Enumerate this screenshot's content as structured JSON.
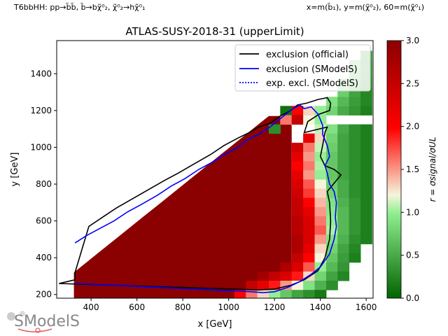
{
  "header": {
    "process": "T6bbHH: pp→b̃b̃, b̃→bχ̃⁰₂, χ̃⁰₂→hχ̃⁰₁",
    "axes_def": "x=m(b̃₁), y=m(χ̃⁰₂), 60=m(χ̃⁰₁)"
  },
  "logo_text": "SModelS",
  "chart_data": {
    "type": "heatmap",
    "title": "ATLAS-SUSY-2018-31 (upperLimit)",
    "xlabel": "x [GeV]",
    "ylabel": "y [GeV]",
    "xlim": [
      250,
      1630
    ],
    "ylim": [
      180,
      1580
    ],
    "xticks": [
      400,
      600,
      800,
      1000,
      1200,
      1400,
      1600
    ],
    "yticks": [
      200,
      400,
      600,
      800,
      1000,
      1200,
      1400
    ],
    "colorbar": {
      "label": "r = σsignal/σUL",
      "range": [
        0,
        3.0
      ],
      "ticks": [
        0.0,
        0.5,
        1.0,
        1.5,
        2.0,
        2.5,
        3.0
      ]
    },
    "legend": {
      "placement": "top-right",
      "entries": [
        {
          "label": "exclusion (official)",
          "color": "#000000",
          "style": "solid"
        },
        {
          "label": "exclusion (SModelS)",
          "color": "#0000ff",
          "style": "solid"
        },
        {
          "label": "exp. excl. (SModelS)",
          "color": "#0000ff",
          "style": "dotted"
        }
      ]
    },
    "grid": {
      "x0": 325,
      "dx": 50,
      "y0": 200,
      "dy": 50,
      "note_r": "cells with r values"
    },
    "cells": [
      [
        1250,
        1200,
        0.1
      ],
      [
        1300,
        1200,
        2.0
      ],
      [
        1250,
        1150,
        1.6
      ],
      [
        1200,
        1100,
        0.3
      ],
      [
        1300,
        1150,
        2.5
      ],
      [
        1350,
        1150,
        1.2
      ],
      [
        1400,
        1150,
        1.0
      ],
      [
        1350,
        1200,
        1.3
      ],
      [
        1400,
        1200,
        1.0
      ],
      [
        1450,
        1200,
        0.8
      ],
      [
        1500,
        1200,
        0.5
      ],
      [
        1550,
        1200,
        0.35
      ],
      [
        1600,
        1200,
        0.2
      ],
      [
        1450,
        1250,
        0.9
      ],
      [
        1500,
        1250,
        0.6
      ],
      [
        1550,
        1250,
        0.4
      ],
      [
        1600,
        1250,
        0.25
      ],
      [
        1500,
        1300,
        0.75
      ],
      [
        1550,
        1300,
        0.45
      ],
      [
        1600,
        1300,
        0.25
      ],
      [
        1500,
        1350,
        0.8
      ],
      [
        1550,
        1350,
        0.5
      ],
      [
        1600,
        1350,
        0.3
      ],
      [
        1550,
        1400,
        0.6
      ],
      [
        1600,
        1400,
        0.35
      ],
      [
        1550,
        1450,
        0.7
      ],
      [
        1600,
        1450,
        0.35
      ],
      [
        1600,
        1500,
        0.4
      ],
      [
        1400,
        1100,
        1.1
      ],
      [
        1450,
        1100,
        0.9
      ],
      [
        1500,
        1100,
        0.5
      ],
      [
        1550,
        1100,
        0.3
      ],
      [
        1600,
        1100,
        0.2
      ],
      [
        1350,
        1050,
        2.2
      ],
      [
        1400,
        1050,
        1.3
      ],
      [
        1450,
        1050,
        0.8
      ],
      [
        1500,
        1050,
        0.45
      ],
      [
        1550,
        1050,
        0.3
      ],
      [
        1600,
        1050,
        0.2
      ],
      [
        1300,
        1000,
        2.4
      ],
      [
        1350,
        1000,
        1.6
      ],
      [
        1400,
        1000,
        1.1
      ],
      [
        1450,
        1000,
        0.75
      ],
      [
        1500,
        1000,
        0.45
      ],
      [
        1550,
        1000,
        0.3
      ],
      [
        1600,
        1000,
        0.2
      ],
      [
        1300,
        950,
        2.2
      ],
      [
        1350,
        950,
        1.5
      ],
      [
        1400,
        950,
        1.0
      ],
      [
        1450,
        950,
        0.7
      ],
      [
        1500,
        950,
        0.45
      ],
      [
        1550,
        950,
        0.3
      ],
      [
        1600,
        950,
        0.2
      ],
      [
        1300,
        900,
        2.0
      ],
      [
        1350,
        900,
        1.6
      ],
      [
        1400,
        900,
        1.05
      ],
      [
        1450,
        900,
        0.7
      ],
      [
        1500,
        900,
        0.45
      ],
      [
        1550,
        900,
        0.3
      ],
      [
        1600,
        900,
        0.2
      ],
      [
        1300,
        850,
        2.2
      ],
      [
        1350,
        850,
        1.5
      ],
      [
        1400,
        850,
        1.0
      ],
      [
        1450,
        850,
        0.7
      ],
      [
        1500,
        850,
        0.45
      ],
      [
        1550,
        850,
        0.3
      ],
      [
        1600,
        850,
        0.2
      ],
      [
        1300,
        800,
        2.3
      ],
      [
        1350,
        800,
        1.7
      ],
      [
        1400,
        800,
        1.2
      ],
      [
        1450,
        800,
        0.75
      ],
      [
        1500,
        800,
        0.5
      ],
      [
        1550,
        800,
        0.3
      ],
      [
        1600,
        800,
        0.2
      ],
      [
        1300,
        750,
        2.4
      ],
      [
        1350,
        750,
        1.8
      ],
      [
        1400,
        750,
        1.3
      ],
      [
        1450,
        750,
        0.8
      ],
      [
        1500,
        750,
        0.5
      ],
      [
        1550,
        750,
        0.3
      ],
      [
        1600,
        750,
        0.2
      ],
      [
        1300,
        700,
        2.5
      ],
      [
        1350,
        700,
        2.0
      ],
      [
        1400,
        700,
        1.4
      ],
      [
        1450,
        700,
        0.9
      ],
      [
        1500,
        700,
        0.55
      ],
      [
        1550,
        700,
        0.35
      ],
      [
        1600,
        700,
        0.2
      ],
      [
        1300,
        650,
        2.5
      ],
      [
        1350,
        650,
        2.2
      ],
      [
        1400,
        650,
        1.5
      ],
      [
        1450,
        650,
        0.95
      ],
      [
        1500,
        650,
        0.6
      ],
      [
        1550,
        650,
        0.35
      ],
      [
        1600,
        650,
        0.2
      ],
      [
        1300,
        600,
        2.6
      ],
      [
        1350,
        600,
        2.3
      ],
      [
        1400,
        600,
        1.6
      ],
      [
        1450,
        600,
        1.0
      ],
      [
        1500,
        600,
        0.6
      ],
      [
        1550,
        600,
        0.35
      ],
      [
        1600,
        600,
        0.2
      ],
      [
        1300,
        550,
        2.6
      ],
      [
        1350,
        550,
        2.3
      ],
      [
        1400,
        550,
        1.7
      ],
      [
        1450,
        550,
        1.05
      ],
      [
        1500,
        550,
        0.6
      ],
      [
        1550,
        550,
        0.35
      ],
      [
        1600,
        550,
        0.2
      ],
      [
        1300,
        500,
        2.7
      ],
      [
        1350,
        500,
        2.3
      ],
      [
        1400,
        500,
        1.5
      ],
      [
        1450,
        500,
        0.9
      ],
      [
        1500,
        500,
        0.55
      ],
      [
        1550,
        500,
        0.3
      ],
      [
        1600,
        500,
        0.2
      ],
      [
        1300,
        450,
        2.7
      ],
      [
        1350,
        450,
        2.2
      ],
      [
        1400,
        450,
        1.3
      ],
      [
        1450,
        450,
        0.8
      ],
      [
        1500,
        450,
        0.45
      ],
      [
        1550,
        450,
        0.25
      ],
      [
        1300,
        400,
        2.5
      ],
      [
        1350,
        400,
        2.0
      ],
      [
        1400,
        400,
        1.2
      ],
      [
        1450,
        400,
        0.7
      ],
      [
        1500,
        400,
        0.4
      ],
      [
        1550,
        400,
        0.2
      ],
      [
        1250,
        350,
        2.7
      ],
      [
        1300,
        350,
        2.3
      ],
      [
        1350,
        350,
        1.7
      ],
      [
        1400,
        350,
        1.0
      ],
      [
        1450,
        350,
        0.6
      ],
      [
        1500,
        350,
        0.35
      ],
      [
        1150,
        300,
        2.8
      ],
      [
        1200,
        300,
        2.5
      ],
      [
        1250,
        300,
        2.3
      ],
      [
        1300,
        300,
        1.9
      ],
      [
        1350,
        300,
        1.3
      ],
      [
        1400,
        300,
        0.8
      ],
      [
        1450,
        300,
        0.45
      ],
      [
        1500,
        300,
        0.25
      ],
      [
        1100,
        250,
        2.5
      ],
      [
        1150,
        250,
        2.2
      ],
      [
        1200,
        250,
        1.9
      ],
      [
        1250,
        250,
        1.5
      ],
      [
        1300,
        250,
        1.2
      ],
      [
        1350,
        250,
        0.9
      ],
      [
        1400,
        250,
        0.55
      ],
      [
        1450,
        250,
        0.3
      ],
      [
        1050,
        200,
        2.0
      ],
      [
        1100,
        200,
        1.6
      ],
      [
        1150,
        200,
        1.3
      ],
      [
        1200,
        200,
        1.0
      ],
      [
        1250,
        200,
        0.7
      ],
      [
        1300,
        200,
        0.45
      ],
      [
        1350,
        200,
        0.3
      ],
      [
        1400,
        200,
        0.15
      ]
    ],
    "dark_region": {
      "r": 3.0,
      "boundary": [
        [
          325,
          230
        ],
        [
          325,
          320
        ],
        [
          375,
          370
        ],
        [
          425,
          420
        ],
        [
          475,
          470
        ],
        [
          525,
          520
        ],
        [
          575,
          570
        ],
        [
          625,
          620
        ],
        [
          675,
          670
        ],
        [
          725,
          720
        ],
        [
          775,
          770
        ],
        [
          825,
          820
        ],
        [
          875,
          870
        ],
        [
          925,
          920
        ],
        [
          975,
          970
        ],
        [
          1025,
          1020
        ],
        [
          1075,
          1070
        ],
        [
          1125,
          1120
        ],
        [
          1175,
          1170
        ],
        [
          1225,
          1170
        ],
        [
          1275,
          1120
        ],
        [
          1275,
          275
        ],
        [
          1225,
          250
        ],
        [
          1175,
          225
        ],
        [
          1125,
          200
        ],
        [
          1075,
          175
        ],
        [
          325,
          175
        ]
      ]
    },
    "curves": {
      "official": [
        [
          260,
          260
        ],
        [
          1130,
          225
        ],
        [
          1200,
          230
        ],
        [
          1270,
          250
        ],
        [
          1330,
          280
        ],
        [
          1390,
          330
        ],
        [
          1420,
          400
        ],
        [
          1440,
          500
        ],
        [
          1445,
          600
        ],
        [
          1440,
          700
        ],
        [
          1430,
          760
        ],
        [
          1450,
          790
        ],
        [
          1490,
          850
        ],
        [
          1460,
          880
        ],
        [
          1420,
          900
        ],
        [
          1400,
          950
        ],
        [
          1410,
          1010
        ],
        [
          1420,
          1080
        ],
        [
          1430,
          1110
        ],
        [
          1330,
          1080
        ],
        [
          1345,
          1140
        ],
        [
          1395,
          1180
        ],
        [
          1440,
          1200
        ],
        [
          1445,
          1240
        ],
        [
          1430,
          1270
        ],
        [
          1390,
          1260
        ],
        [
          1340,
          1240
        ],
        [
          1300,
          1230
        ],
        [
          1270,
          1200
        ],
        [
          1225,
          1170
        ],
        [
          1180,
          1130
        ],
        [
          1130,
          1110
        ],
        [
          1090,
          1080
        ],
        [
          1040,
          1050
        ],
        [
          980,
          1010
        ],
        [
          920,
          960
        ],
        [
          850,
          910
        ],
        [
          780,
          860
        ],
        [
          720,
          820
        ],
        [
          650,
          770
        ],
        [
          580,
          720
        ],
        [
          510,
          670
        ],
        [
          450,
          620
        ],
        [
          390,
          570
        ],
        [
          330,
          320
        ],
        [
          330,
          280
        ],
        [
          260,
          260
        ]
      ],
      "smodels": [
        [
          330,
          260
        ],
        [
          1100,
          215
        ],
        [
          1150,
          210
        ],
        [
          1200,
          215
        ],
        [
          1260,
          240
        ],
        [
          1310,
          270
        ],
        [
          1360,
          310
        ],
        [
          1400,
          350
        ],
        [
          1440,
          420
        ],
        [
          1460,
          500
        ],
        [
          1470,
          570
        ],
        [
          1465,
          620
        ],
        [
          1470,
          700
        ],
        [
          1460,
          760
        ],
        [
          1440,
          800
        ],
        [
          1430,
          860
        ],
        [
          1420,
          900
        ],
        [
          1440,
          950
        ],
        [
          1430,
          1010
        ],
        [
          1410,
          1070
        ],
        [
          1410,
          1120
        ],
        [
          1390,
          1180
        ],
        [
          1360,
          1220
        ],
        [
          1330,
          1210
        ],
        [
          1310,
          1230
        ],
        [
          1280,
          1210
        ],
        [
          1250,
          1180
        ],
        [
          1220,
          1150
        ],
        [
          1180,
          1110
        ],
        [
          1130,
          1070
        ],
        [
          1080,
          1040
        ],
        [
          1040,
          1000
        ],
        [
          980,
          960
        ],
        [
          930,
          920
        ],
        [
          870,
          880
        ],
        [
          810,
          830
        ],
        [
          750,
          790
        ],
        [
          690,
          740
        ],
        [
          620,
          690
        ],
        [
          560,
          650
        ],
        [
          500,
          600
        ],
        [
          440,
          560
        ],
        [
          380,
          520
        ],
        [
          330,
          480
        ]
      ]
    }
  }
}
